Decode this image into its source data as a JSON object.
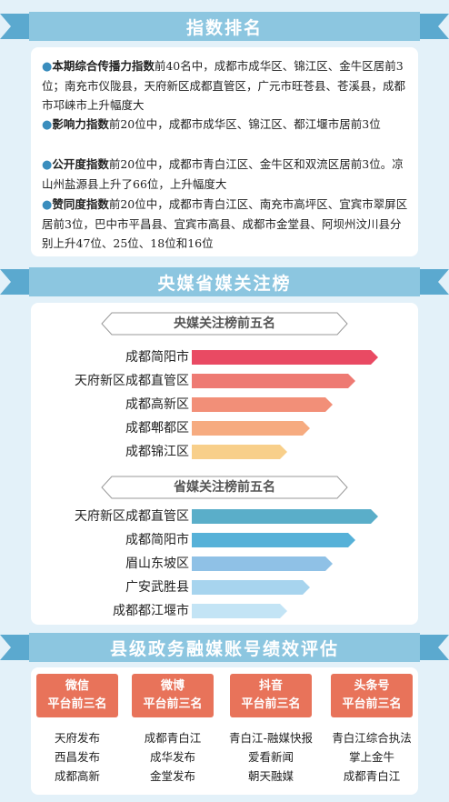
{
  "sections": {
    "ranking_title": "指数排名",
    "media_title": "央媒省媒关注榜",
    "county_title": "县级政务融媒账号绩效评估"
  },
  "ranking": {
    "items": [
      {
        "bold": "本期综合传播力指数",
        "text": "前40名中，成都市成华区、锦江区、金牛区居前3位；南充市仪陇县，天府新区成都直管区，广元市旺苍县、苍溪县，成都市邛崃市上升幅度大"
      },
      {
        "bold": "影响力指数",
        "text": "前20位中，成都市成华区、锦江区、都江堰市居前3位"
      },
      {
        "bold": "公开度指数",
        "text": "前20位中，成都市青白江区、金牛区和双流区居前3位。凉山州盐源县上升了66位，上升幅度大"
      },
      {
        "bold": "赞同度指数",
        "text": "前20位中，成都市青白江区、南充市高坪区、宜宾市翠屏区居前3位，巴中市平昌县、宜宾市高县、成都市金堂县、阿坝州汶川县分别上升47位、25位、18位和16位"
      }
    ]
  },
  "central_media": {
    "subtitle": "央媒关注榜前五名",
    "rows": [
      {
        "label": "成都简阳市",
        "value": 5,
        "color": "#e94a63"
      },
      {
        "label": "天府新区成都直管区",
        "value": 4,
        "color": "#ee7a73"
      },
      {
        "label": "成都高新区",
        "value": 3,
        "color": "#f28f78"
      },
      {
        "label": "成都郫都区",
        "value": 2,
        "color": "#f6ab80"
      },
      {
        "label": "成都锦江区",
        "value": 1,
        "color": "#f8cf8a"
      }
    ]
  },
  "provincial_media": {
    "subtitle": "省媒关注榜前五名",
    "rows": [
      {
        "label": "天府新区成都直管区",
        "value": 5,
        "color": "#5aaec9"
      },
      {
        "label": "成都简阳市",
        "value": 4,
        "color": "#56b1d8"
      },
      {
        "label": "眉山东坡区",
        "value": 3,
        "color": "#8fc1e6"
      },
      {
        "label": "广安武胜县",
        "value": 2,
        "color": "#a7d4ee"
      },
      {
        "label": "成都都江堰市",
        "value": 1,
        "color": "#c3e4f5"
      }
    ]
  },
  "platforms": [
    {
      "line1": "微信",
      "line2": "平台前三名",
      "items": [
        "天府发布",
        "西昌发布",
        "成都高新"
      ]
    },
    {
      "line1": "微博",
      "line2": "平台前三名",
      "items": [
        "成都青白江",
        "成华发布",
        "金堂发布"
      ]
    },
    {
      "line1": "抖音",
      "line2": "平台前三名",
      "items": [
        "青白江-融媒快报",
        "爱看新闻",
        "朝天融媒"
      ]
    },
    {
      "line1": "头条号",
      "line2": "平台前三名",
      "items": [
        "青白江综合执法",
        "掌上金牛",
        "成都青白江"
      ]
    }
  ]
}
